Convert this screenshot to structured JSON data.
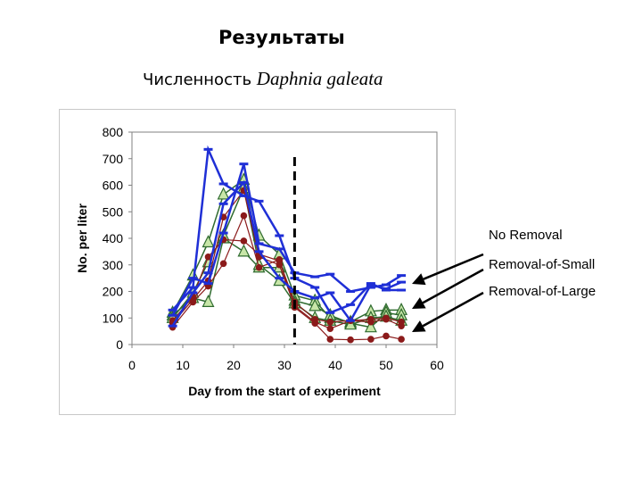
{
  "slide": {
    "title": "Результаты",
    "subtitle_prefix": "Численность",
    "subtitle_species": "Daphnia galeata"
  },
  "legend_labels": [
    "No Removal",
    "Removal-of-Small",
    "Removal-of-Large"
  ],
  "colors": {
    "no_removal": "#1f2fd6",
    "removal_of_small": "#2f6b2f",
    "removal_of_small_fill": "#c8e6a8",
    "removal_of_large": "#8b1a1a",
    "dashed_line": "#000000"
  },
  "chart_data": {
    "type": "line",
    "xlabel": "Day from the start of experiment",
    "ylabel": "No. per liter",
    "xlim": [
      0,
      60
    ],
    "ylim": [
      0,
      800
    ],
    "xticks": [
      0,
      10,
      20,
      30,
      40,
      50,
      60
    ],
    "yticks": [
      0,
      100,
      200,
      300,
      400,
      500,
      600,
      700,
      800
    ],
    "grid": false,
    "vertical_marker_x": 32,
    "groups": [
      {
        "name": "No Removal",
        "marker": "dash",
        "series": [
          {
            "x": [
              8,
              12,
              15,
              18,
              22,
              25,
              29,
              32,
              36,
              39,
              43,
              47,
              50,
              53
            ],
            "y": [
              130,
              215,
              735,
              605,
              560,
              540,
              410,
              250,
              215,
              120,
              150,
              230,
              205,
              205
            ]
          },
          {
            "x": [
              8,
              12,
              15,
              18,
              22,
              25,
              29,
              32,
              36,
              39,
              43,
              47,
              50,
              53
            ],
            "y": [
              110,
              250,
              230,
              420,
              680,
              380,
              360,
              270,
              255,
              265,
              200,
              215,
              225,
              260
            ]
          },
          {
            "x": [
              8,
              12,
              15,
              18,
              22,
              25,
              29,
              32,
              36,
              39,
              43,
              47,
              50,
              53
            ],
            "y": [
              70,
              195,
              270,
              530,
              610,
              350,
              250,
              200,
              175,
              195,
              90,
              225,
              210,
              235
            ]
          }
        ]
      },
      {
        "name": "Removal-of-Small",
        "marker": "triangle",
        "series": [
          {
            "x": [
              8,
              12,
              15,
              18,
              22,
              25,
              29,
              32,
              36,
              39,
              43,
              47,
              50,
              53
            ],
            "y": [
              120,
              260,
              385,
              565,
              620,
              410,
              340,
              185,
              165,
              100,
              85,
              125,
              130,
              130
            ]
          },
          {
            "x": [
              8,
              12,
              15,
              18,
              22,
              25,
              29,
              32,
              36,
              39,
              43,
              47,
              50,
              53
            ],
            "y": [
              110,
              175,
              160,
              400,
              350,
              290,
              290,
              165,
              145,
              110,
              80,
              65,
              120,
              110
            ]
          },
          {
            "x": [
              8,
              12,
              15,
              18,
              22,
              25,
              29,
              32,
              36,
              39,
              43,
              47,
              50,
              53
            ],
            "y": [
              100,
              195,
              310,
              410,
              590,
              300,
              240,
              155,
              100,
              90,
              75,
              100,
              105,
              90
            ]
          }
        ]
      },
      {
        "name": "Removal-of-Large",
        "marker": "circle",
        "series": [
          {
            "x": [
              8,
              12,
              15,
              18,
              22,
              25,
              29,
              32,
              36,
              39,
              43,
              47,
              50,
              53
            ],
            "y": [
              65,
              160,
              220,
              305,
              485,
              290,
              320,
              140,
              80,
              20,
              18,
              20,
              32,
              20
            ]
          },
          {
            "x": [
              8,
              12,
              15,
              18,
              22,
              25,
              29,
              32,
              36,
              39,
              43,
              47,
              50,
              53
            ],
            "y": [
              80,
              170,
              240,
              480,
              580,
              330,
              300,
              145,
              85,
              60,
              90,
              85,
              95,
              70
            ]
          },
          {
            "x": [
              8,
              12,
              15,
              18,
              22,
              25,
              29,
              32,
              36,
              39,
              43,
              47,
              50,
              53
            ],
            "y": [
              90,
              180,
              330,
              395,
              390,
              340,
              315,
              160,
              95,
              85,
              90,
              95,
              100,
              85
            ]
          }
        ]
      }
    ]
  }
}
